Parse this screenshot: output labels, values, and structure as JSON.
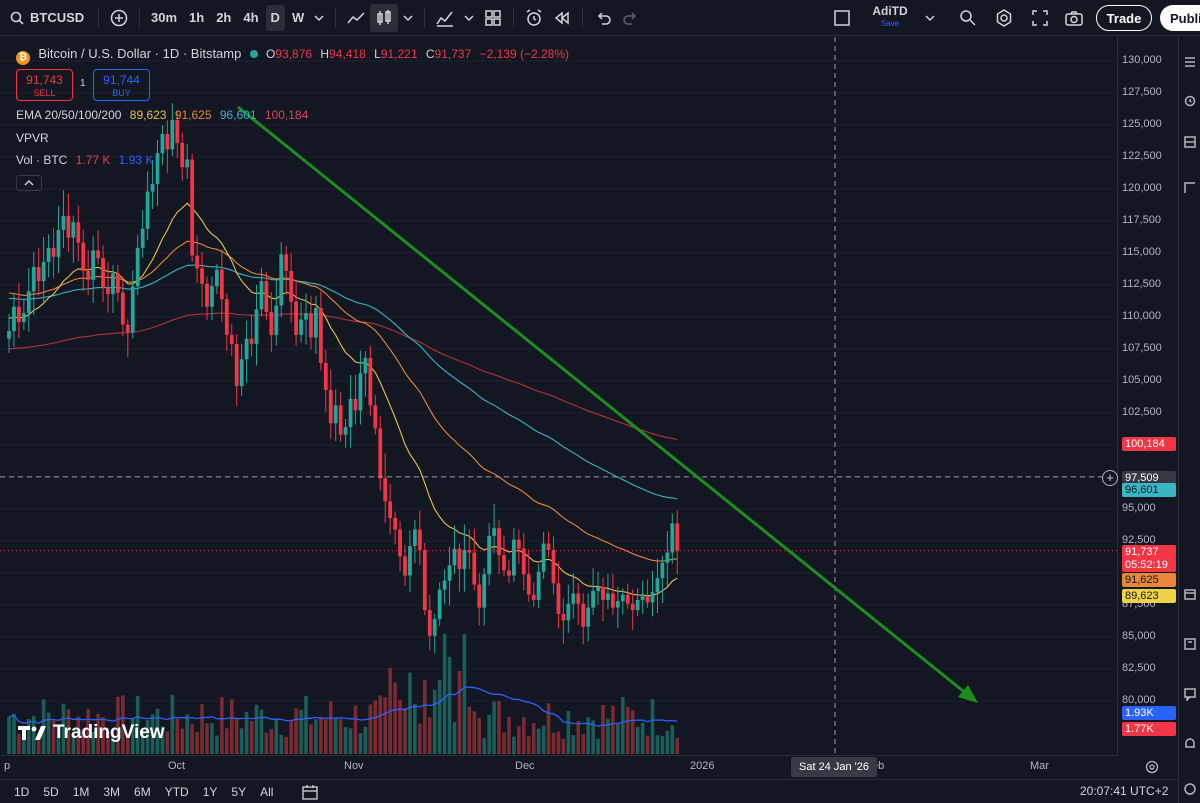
{
  "toolbar": {
    "symbol": "BTCUSD",
    "timeframes": [
      "30m",
      "1h",
      "2h",
      "4h",
      "D",
      "W"
    ],
    "active_timeframe": "D",
    "account_name": "AdiTD",
    "account_sub": "Save",
    "trade_label": "Trade",
    "publish_label": "Publi"
  },
  "legend": {
    "title": "Bitcoin / U.S. Dollar · 1D · Bitstamp",
    "open_k": "O",
    "open": "93,876",
    "high_k": "H",
    "high": "94,418",
    "low_k": "L",
    "low": "91,221",
    "close_k": "C",
    "close": "91,737",
    "change": "−2,139 (−2.28%)",
    "sell_price": "91,743",
    "sell_label": "SELL",
    "spread": "1",
    "buy_price": "91,744",
    "buy_label": "BUY",
    "ema_label": "EMA 20/50/100/200",
    "ema20": "89,623",
    "ema50": "91,625",
    "ema100": "96,601",
    "ema200": "100,184",
    "vpvr_label": "VPVR",
    "vol_label": "Vol · BTC",
    "vol_a": "1.77 K",
    "vol_b": "1.93 K"
  },
  "price_scale": {
    "labels": [
      "130,000",
      "127,500",
      "125,000",
      "122,500",
      "120,000",
      "117,500",
      "115,000",
      "112,500",
      "110,000",
      "107,500",
      "105,000",
      "102,500",
      "95,000",
      "92,500",
      "87,500",
      "85,000",
      "82,500",
      "80,000"
    ],
    "tags": {
      "ema200": "100,184",
      "crosshair": "97,509",
      "ema100": "96,601",
      "last": "91,737",
      "countdown": "05:52:19",
      "ema50": "91,625",
      "ema20": "89,623",
      "vol_b": "1.93K",
      "vol_a": "1.77K"
    }
  },
  "time_axis": {
    "labels": [
      "p",
      "Oct",
      "Nov",
      "Dec",
      "2026",
      "eb",
      "Mar"
    ],
    "crosshair_label": "Sat 24 Jan '26"
  },
  "watermark": "TradingView",
  "bottom": {
    "ranges": [
      "1D",
      "5D",
      "1M",
      "3M",
      "6M",
      "YTD",
      "1Y",
      "5Y",
      "All"
    ],
    "clock": "20:07:41 UTC+2"
  },
  "colors": {
    "up": "#26a69a",
    "down": "#f23645",
    "ema20": "#e6c34d",
    "ema50": "#e8873a",
    "ema100": "#3ab5c6",
    "ema200": "#b0343a",
    "trendline": "#1f8c1f",
    "volume_ma": "#2962ff"
  }
}
